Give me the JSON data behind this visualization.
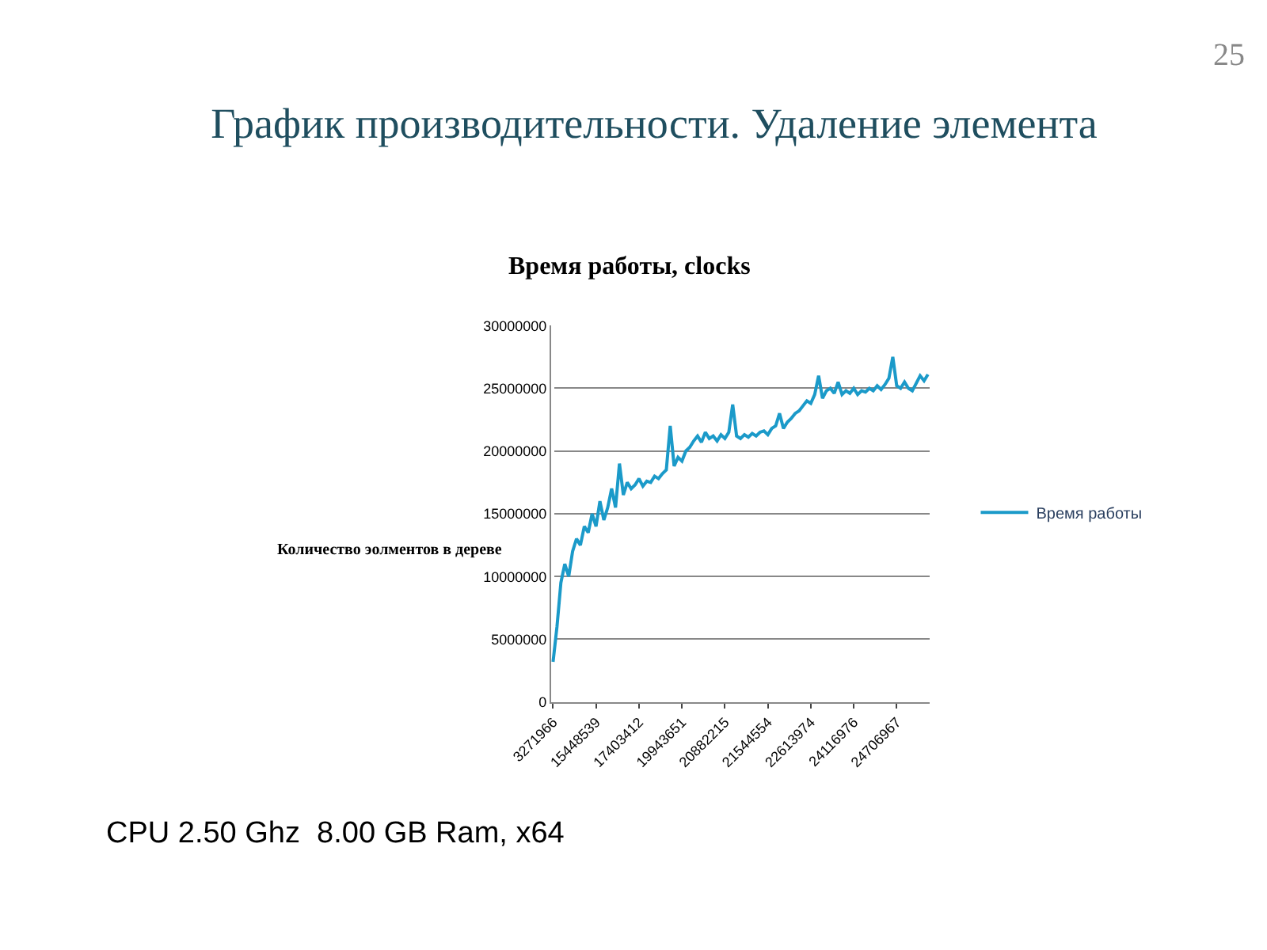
{
  "chart_data": {
    "type": "line",
    "title": "График производительности. Удаление элемента",
    "subtitle": "Время работы, clocks",
    "ylabel": "Количество эолментов в дереве",
    "categories": [
      "3271966",
      null,
      null,
      null,
      null,
      null,
      null,
      null,
      null,
      null,
      null,
      "15448539",
      null,
      null,
      null,
      null,
      null,
      null,
      null,
      null,
      null,
      null,
      "17403412",
      null,
      null,
      null,
      null,
      null,
      null,
      null,
      null,
      null,
      null,
      "19943651",
      null,
      null,
      null,
      null,
      null,
      null,
      null,
      null,
      null,
      null,
      "20882215",
      null,
      null,
      null,
      null,
      null,
      null,
      null,
      null,
      null,
      null,
      "21544554",
      null,
      null,
      null,
      null,
      null,
      null,
      null,
      null,
      null,
      null,
      "22613974",
      null,
      null,
      null,
      null,
      null,
      null,
      null,
      null,
      null,
      null,
      "24116976",
      null,
      null,
      null,
      null,
      null,
      null,
      null,
      null,
      null,
      null,
      "24706967",
      null,
      null,
      null,
      null,
      null,
      null,
      null,
      null
    ],
    "series": [
      {
        "name": "Время работы",
        "color": "#1b9ac9",
        "values": [
          3200000,
          6000000,
          9500000,
          11000000,
          10000000,
          12000000,
          13000000,
          12500000,
          14000000,
          13500000,
          15000000,
          14000000,
          16000000,
          14500000,
          15500000,
          17000000,
          15500000,
          19000000,
          16500000,
          17500000,
          17000000,
          17300000,
          17800000,
          17200000,
          17600000,
          17500000,
          18000000,
          17800000,
          18200000,
          18500000,
          22000000,
          18800000,
          19500000,
          19200000,
          20000000,
          20300000,
          20800000,
          21200000,
          20700000,
          21500000,
          21000000,
          21200000,
          20800000,
          21300000,
          21000000,
          21500000,
          23700000,
          21200000,
          21000000,
          21300000,
          21100000,
          21400000,
          21200000,
          21500000,
          21600000,
          21300000,
          21800000,
          22000000,
          23000000,
          21800000,
          22300000,
          22600000,
          23000000,
          23200000,
          23600000,
          24000000,
          23800000,
          24500000,
          26000000,
          24200000,
          24800000,
          25000000,
          24600000,
          25500000,
          24500000,
          24800000,
          24600000,
          25000000,
          24500000,
          24800000,
          24700000,
          25000000,
          24800000,
          25200000,
          24900000,
          25300000,
          25800000,
          27500000,
          25200000,
          25000000,
          25500000,
          25000000,
          24800000,
          25400000,
          26000000,
          25600000,
          26100000
        ]
      }
    ],
    "ylim": [
      0,
      30000000
    ],
    "yticks": [
      0,
      5000000,
      10000000,
      15000000,
      20000000,
      25000000,
      30000000
    ],
    "grid": "y",
    "legend": "right",
    "marker": "none",
    "line_style": "solid",
    "annotations": [
      "25",
      "CPU 2.50 Ghz  8.00 GB Ram, x64"
    ]
  }
}
